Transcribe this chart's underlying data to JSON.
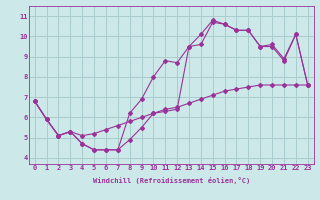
{
  "title": "",
  "xlabel": "Windchill (Refroidissement éolien,°C)",
  "ylabel": "",
  "xlim": [
    -0.5,
    23.5
  ],
  "ylim": [
    3.7,
    11.5
  ],
  "xticks": [
    0,
    1,
    2,
    3,
    4,
    5,
    6,
    7,
    8,
    9,
    10,
    11,
    12,
    13,
    14,
    15,
    16,
    17,
    18,
    19,
    20,
    21,
    22,
    23
  ],
  "yticks": [
    4,
    5,
    6,
    7,
    8,
    9,
    10,
    11
  ],
  "bg_color": "#cce8e8",
  "line_color": "#993399",
  "grid_color": "#aacccc",
  "line1_x": [
    0,
    1,
    2,
    3,
    4,
    5,
    6,
    7,
    8,
    9,
    10,
    11,
    12,
    13,
    14,
    15,
    16,
    17,
    18,
    19,
    20,
    21,
    22,
    23
  ],
  "line1_y": [
    6.8,
    5.9,
    5.1,
    5.3,
    4.7,
    4.4,
    4.4,
    4.4,
    4.9,
    5.5,
    6.2,
    6.3,
    6.4,
    9.5,
    9.6,
    10.7,
    10.6,
    10.3,
    10.3,
    9.5,
    9.5,
    8.8,
    10.1,
    7.6
  ],
  "line2_x": [
    0,
    1,
    2,
    3,
    4,
    5,
    6,
    7,
    8,
    9,
    10,
    11,
    12,
    13,
    14,
    15,
    16,
    17,
    18,
    19,
    20,
    21,
    22,
    23
  ],
  "line2_y": [
    6.8,
    5.9,
    5.1,
    5.3,
    4.7,
    4.4,
    4.4,
    4.4,
    6.2,
    6.9,
    8.0,
    8.8,
    8.7,
    9.5,
    10.1,
    10.8,
    10.6,
    10.3,
    10.3,
    9.5,
    9.6,
    8.9,
    10.1,
    7.6
  ],
  "line3_x": [
    0,
    1,
    2,
    3,
    4,
    5,
    6,
    7,
    8,
    9,
    10,
    11,
    12,
    13,
    14,
    15,
    16,
    17,
    18,
    19,
    20,
    21,
    22,
    23
  ],
  "line3_y": [
    6.8,
    5.9,
    5.1,
    5.3,
    5.1,
    5.2,
    5.4,
    5.6,
    5.8,
    6.0,
    6.2,
    6.4,
    6.5,
    6.7,
    6.9,
    7.1,
    7.3,
    7.4,
    7.5,
    7.6,
    7.6,
    7.6,
    7.6,
    7.6
  ]
}
